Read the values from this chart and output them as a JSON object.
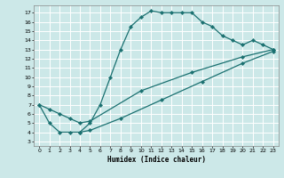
{
  "xlabel": "Humidex (Indice chaleur)",
  "bg_color": "#cce8e8",
  "grid_color": "#ffffff",
  "line_color": "#1a7070",
  "xlim": [
    -0.5,
    23.5
  ],
  "ylim": [
    2.5,
    17.8
  ],
  "yticks": [
    3,
    4,
    5,
    6,
    7,
    8,
    9,
    10,
    11,
    12,
    13,
    14,
    15,
    16,
    17
  ],
  "xticks": [
    0,
    1,
    2,
    3,
    4,
    5,
    6,
    7,
    8,
    9,
    10,
    11,
    12,
    13,
    14,
    15,
    16,
    17,
    18,
    19,
    20,
    21,
    22,
    23
  ],
  "curve1_x": [
    0,
    1,
    2,
    3,
    4,
    5,
    6,
    7,
    8,
    9,
    10,
    11,
    12,
    13,
    14,
    15,
    16,
    17,
    18,
    19,
    20,
    21,
    22,
    23
  ],
  "curve1_y": [
    7,
    5,
    4,
    4,
    4,
    5,
    7,
    10,
    13,
    15.5,
    16.5,
    17.2,
    17.0,
    17.0,
    17.0,
    17.0,
    16.0,
    15.5,
    14.5,
    14.0,
    13.5,
    14.0,
    13.5,
    13.0
  ],
  "curve2_x": [
    0,
    1,
    2,
    3,
    4,
    5,
    10,
    15,
    20,
    23
  ],
  "curve2_y": [
    7,
    6.5,
    6.0,
    5.5,
    5.0,
    5.2,
    8.5,
    10.5,
    12.2,
    13.0
  ],
  "curve3_x": [
    4,
    5,
    8,
    12,
    16,
    20,
    23
  ],
  "curve3_y": [
    4,
    4.2,
    5.5,
    7.5,
    9.5,
    11.5,
    12.8
  ],
  "marker": "D",
  "markersize": 2.2,
  "linewidth": 0.9
}
